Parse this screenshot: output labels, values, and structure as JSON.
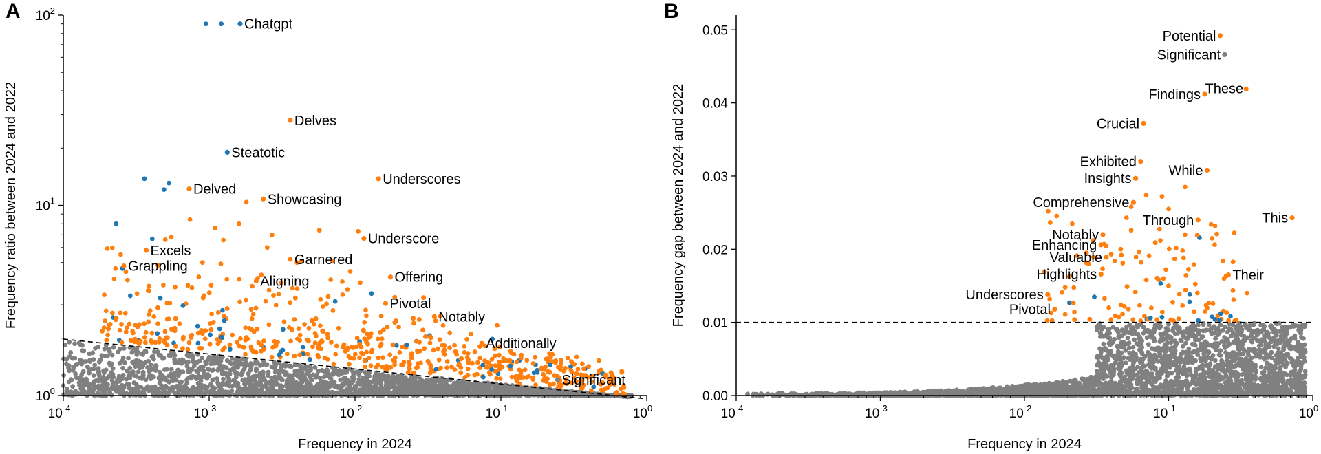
{
  "chart_data": [
    {
      "type": "scatter",
      "panel": "A",
      "xlabel": "Frequency in 2024",
      "ylabel": "Frequency ratio between 2024 and 2022",
      "xscale": "log",
      "yscale": "log",
      "xlim": [
        0.0001,
        1
      ],
      "ylim": [
        1,
        100
      ],
      "x_tick_labels": [
        {
          "value": 0.0001,
          "base": "10",
          "exp": "-4"
        },
        {
          "value": 0.001,
          "base": "10",
          "exp": "-3"
        },
        {
          "value": 0.01,
          "base": "10",
          "exp": "-2"
        },
        {
          "value": 0.1,
          "base": "10",
          "exp": "-1"
        },
        {
          "value": 1,
          "base": "10",
          "exp": "0"
        }
      ],
      "y_tick_labels": [
        {
          "value": 1,
          "base": "10",
          "exp": "0"
        },
        {
          "value": 10,
          "base": "10",
          "exp": "1"
        },
        {
          "value": 100,
          "base": "10",
          "exp": "2"
        }
      ],
      "colors": {
        "orange": "#ff7f0e",
        "blue": "#1f77b4",
        "gray": "#808080"
      },
      "annotations": [
        {
          "text": "Chatgpt",
          "x": 0.00163,
          "y": 90,
          "color": "blue"
        },
        {
          "text": "Delves",
          "x": 0.0036,
          "y": 28,
          "color": "orange"
        },
        {
          "text": "Steatotic",
          "x": 0.00133,
          "y": 19,
          "color": "blue"
        },
        {
          "text": "Underscores",
          "x": 0.0145,
          "y": 13.8,
          "color": "orange"
        },
        {
          "text": "Delved",
          "x": 0.00073,
          "y": 12.2,
          "color": "orange"
        },
        {
          "text": "Showcasing",
          "x": 0.00235,
          "y": 10.8,
          "color": "orange"
        },
        {
          "text": "Underscore",
          "x": 0.0115,
          "y": 6.7,
          "color": "orange"
        },
        {
          "text": "Excels",
          "x": 0.00037,
          "y": 5.8,
          "color": "orange"
        },
        {
          "text": "Garnered",
          "x": 0.0036,
          "y": 5.2,
          "color": "orange"
        },
        {
          "text": "Grappling",
          "x": 0.00026,
          "y": 4.8,
          "color": "orange"
        },
        {
          "text": "Offering",
          "x": 0.0175,
          "y": 4.2,
          "color": "orange"
        },
        {
          "text": "Aligning",
          "x": 0.0021,
          "y": 4.0,
          "color": "orange"
        },
        {
          "text": "Pivotal",
          "x": 0.0162,
          "y": 3.05,
          "color": "orange"
        },
        {
          "text": "Notably",
          "x": 0.035,
          "y": 2.6,
          "color": "orange"
        },
        {
          "text": "Additionally",
          "x": 0.074,
          "y": 1.88,
          "color": "orange"
        },
        {
          "text": "Significant",
          "x": 0.245,
          "y": 1.21,
          "color": "gray"
        }
      ],
      "extra_points": [
        {
          "x": 0.00095,
          "y": 90,
          "color": "blue"
        },
        {
          "x": 0.00121,
          "y": 90,
          "color": "blue"
        },
        {
          "x": 0.00036,
          "y": 13.8,
          "color": "blue"
        },
        {
          "x": 0.00049,
          "y": 12.1,
          "color": "blue"
        },
        {
          "x": 0.00053,
          "y": 13.1,
          "color": "blue"
        }
      ],
      "reference_line": {
        "style": "dashed",
        "x": [
          0.0001,
          1
        ],
        "y": [
          1.98,
          0.96
        ]
      }
    },
    {
      "type": "scatter",
      "panel": "B",
      "xlabel": "Frequency in 2024",
      "ylabel": "Frequency gap between 2024 and 2022",
      "xscale": "log",
      "yscale": "linear",
      "xlim": [
        0.0001,
        1
      ],
      "ylim": [
        0,
        0.052
      ],
      "x_tick_labels": [
        {
          "value": 0.0001,
          "base": "10",
          "exp": "-4"
        },
        {
          "value": 0.001,
          "base": "10",
          "exp": "-3"
        },
        {
          "value": 0.01,
          "base": "10",
          "exp": "-2"
        },
        {
          "value": 0.1,
          "base": "10",
          "exp": "-1"
        },
        {
          "value": 1,
          "base": "10",
          "exp": "0"
        }
      ],
      "y_tick_labels": [
        {
          "value": 0,
          "label": "0.00"
        },
        {
          "value": 0.01,
          "label": "0.01"
        },
        {
          "value": 0.02,
          "label": "0.02"
        },
        {
          "value": 0.03,
          "label": "0.03"
        },
        {
          "value": 0.04,
          "label": "0.04"
        },
        {
          "value": 0.05,
          "label": "0.05"
        }
      ],
      "colors": {
        "orange": "#ff7f0e",
        "blue": "#1f77b4",
        "gray": "#808080"
      },
      "annotations": [
        {
          "text": "Potential",
          "x": 0.228,
          "y": 0.0492,
          "color": "orange"
        },
        {
          "text": "Significant",
          "x": 0.245,
          "y": 0.0466,
          "color": "gray"
        },
        {
          "text": "These",
          "x": 0.345,
          "y": 0.0419,
          "color": "orange"
        },
        {
          "text": "Findings",
          "x": 0.178,
          "y": 0.0412,
          "color": "orange"
        },
        {
          "text": "Crucial",
          "x": 0.067,
          "y": 0.0372,
          "color": "orange"
        },
        {
          "text": "Exhibited",
          "x": 0.064,
          "y": 0.032,
          "color": "orange"
        },
        {
          "text": "While",
          "x": 0.185,
          "y": 0.0308,
          "color": "orange"
        },
        {
          "text": "Insights",
          "x": 0.059,
          "y": 0.0297,
          "color": "orange"
        },
        {
          "text": "Comprehensive",
          "x": 0.057,
          "y": 0.0264,
          "color": "orange"
        },
        {
          "text": "This",
          "x": 0.72,
          "y": 0.0243,
          "color": "orange"
        },
        {
          "text": "Through",
          "x": 0.16,
          "y": 0.024,
          "color": "orange"
        },
        {
          "text": "Notably",
          "x": 0.035,
          "y": 0.022,
          "color": "orange"
        },
        {
          "text": "Enhancing",
          "x": 0.034,
          "y": 0.0206,
          "color": "orange"
        },
        {
          "text": "Valuable",
          "x": 0.037,
          "y": 0.0189,
          "color": "orange"
        },
        {
          "text": "Highlights",
          "x": 0.034,
          "y": 0.0166,
          "color": "orange"
        },
        {
          "text": "Their",
          "x": 0.26,
          "y": 0.0165,
          "color": "orange"
        },
        {
          "text": "Underscores",
          "x": 0.0145,
          "y": 0.0138,
          "color": "orange"
        },
        {
          "text": "Pivotal",
          "x": 0.0162,
          "y": 0.0118,
          "color": "orange"
        }
      ],
      "reference_line": {
        "style": "dashed",
        "y": 0.01
      }
    }
  ]
}
